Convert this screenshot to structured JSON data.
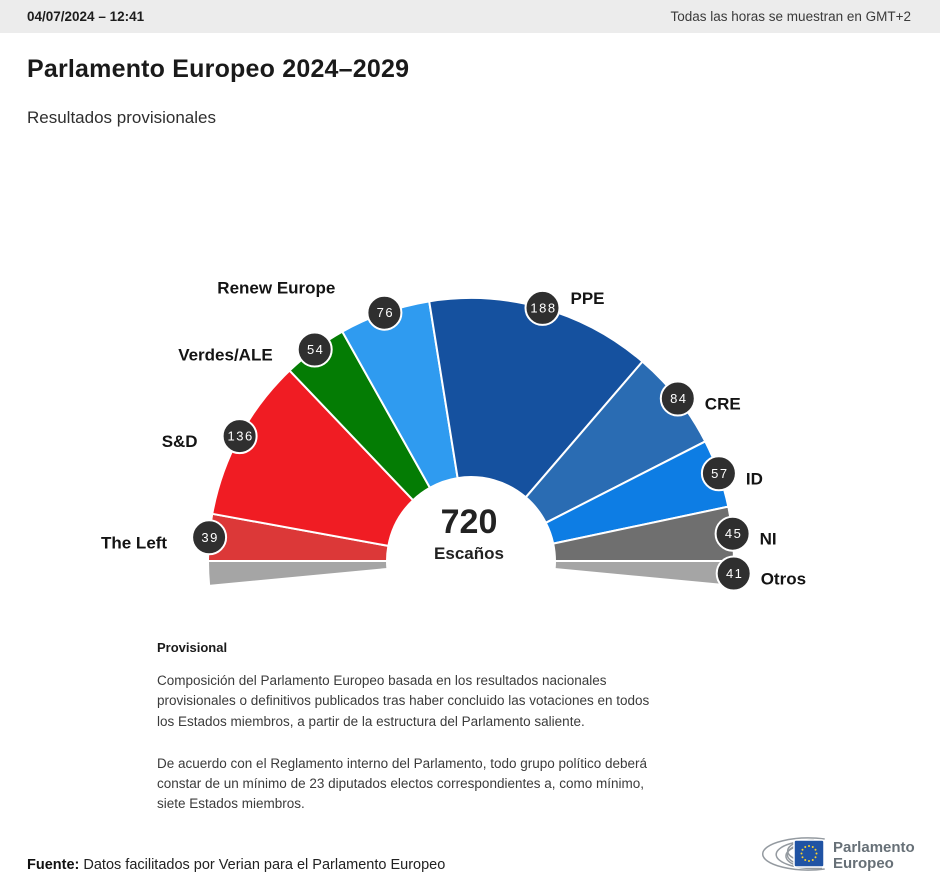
{
  "topbar": {
    "datetime": "04/07/2024 – 12:41",
    "timezone_note": "Todas las horas se muestran en GMT+2"
  },
  "header": {
    "title": "Parlamento Europeo 2024–2029",
    "subtitle": "Resultados provisionales"
  },
  "chart_data": {
    "type": "hemicycle",
    "title": "Parlamento Europeo 2024–2029",
    "total_seats": 720,
    "center_label": {
      "number": "720",
      "caption": "Escaños"
    },
    "legend_position": "around-arc",
    "groups": [
      {
        "name": "The Left",
        "seats": 39,
        "color": "#dc3838",
        "side": "left"
      },
      {
        "name": "S&D",
        "seats": 136,
        "color": "#f01c23",
        "side": "left"
      },
      {
        "name": "Verdes/ALE",
        "seats": 54,
        "color": "#047c04",
        "side": "left"
      },
      {
        "name": "Renew Europe",
        "seats": 76,
        "color": "#2f9bf0",
        "side": "left"
      },
      {
        "name": "PPE",
        "seats": 188,
        "color": "#15519f",
        "side": "right"
      },
      {
        "name": "CRE",
        "seats": 84,
        "color": "#2a6cb3",
        "side": "right"
      },
      {
        "name": "ID",
        "seats": 57,
        "color": "#0d7de4",
        "side": "right"
      },
      {
        "name": "NI",
        "seats": 45,
        "color": "#6f6f6f",
        "side": "right"
      },
      {
        "name": "Otros",
        "seats": 41,
        "color": "#a5a5a5",
        "side": "right",
        "split_both_ends": true
      }
    ]
  },
  "notes": {
    "heading": "Provisional",
    "paragraph1": "Composición del Parlamento Europeo basada en los resultados nacionales provisionales o definitivos publicados tras haber concluido las votaciones en todos los Estados miembros, a partir de la estructura del Parlamento saliente.",
    "paragraph2": "De acuerdo con el Reglamento interno del Parlamento, todo grupo político deberá constar de un mínimo de 23 diputados electos correspondientes a, como mínimo, siete Estados miembros."
  },
  "footer": {
    "source_label": "Fuente:",
    "source_text": " Datos facilitados por Verian para el Parlamento Europeo"
  },
  "logo": {
    "line1": "Parlamento",
    "line2": "Europeo"
  }
}
